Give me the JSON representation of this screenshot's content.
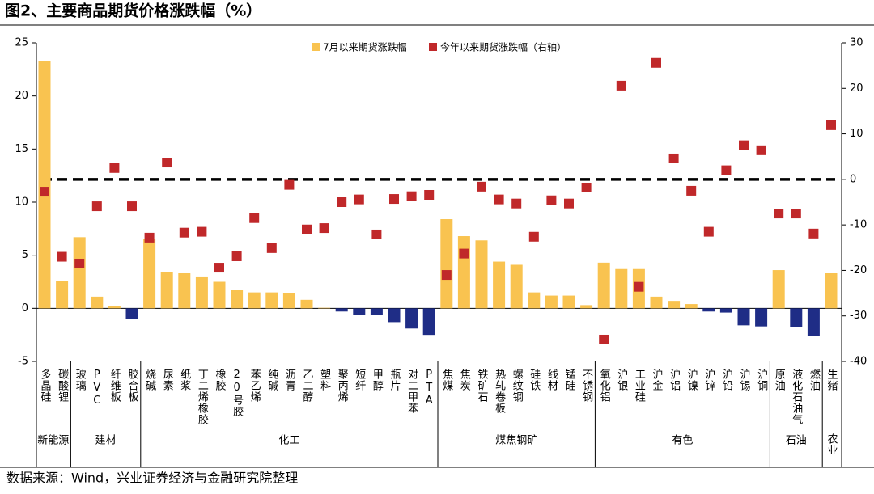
{
  "chart_data": {
    "type": "bar+scatter",
    "title": "图2、主要商品期货价格涨跌幅（%）",
    "source": "数据来源：Wind，兴业证券经济与金融研究院整理",
    "categories": [
      "多晶硅",
      "碳酸锂",
      "玻璃",
      "PVC",
      "纤维板",
      "胶合板",
      "烧碱",
      "尿素",
      "纸浆",
      "丁二烯橡胶",
      "橡胶",
      "20号胶",
      "苯乙烯",
      "纯碱",
      "沥青",
      "乙二醇",
      "塑料",
      "聚丙烯",
      "短纤",
      "甲醇",
      "瓶片",
      "对二甲苯",
      "PTA",
      "焦煤",
      "焦炭",
      "铁矿石",
      "热轧卷板",
      "螺纹钢",
      "硅铁",
      "线材",
      "锰硅",
      "不锈钢",
      "氧化铝",
      "沪银",
      "工业硅",
      "沪金",
      "沪铝",
      "沪镍",
      "沪锌",
      "沪铅",
      "沪锡",
      "沪铜",
      "原油",
      "液化石油气",
      "燃油",
      "生猪"
    ],
    "groups": [
      "新能源",
      "新能源",
      "建材",
      "建材",
      "建材",
      "建材",
      "化工",
      "化工",
      "化工",
      "化工",
      "化工",
      "化工",
      "化工",
      "化工",
      "化工",
      "化工",
      "化工",
      "化工",
      "化工",
      "化工",
      "化工",
      "化工",
      "化工",
      "煤焦钢矿",
      "煤焦钢矿",
      "煤焦钢矿",
      "煤焦钢矿",
      "煤焦钢矿",
      "煤焦钢矿",
      "煤焦钢矿",
      "煤焦钢矿",
      "煤焦钢矿",
      "有色",
      "有色",
      "有色",
      "有色",
      "有色",
      "有色",
      "有色",
      "有色",
      "有色",
      "有色",
      "石油",
      "石油",
      "石油",
      "农业"
    ],
    "series": [
      {
        "name": "7月以来期货涨跌幅",
        "type": "bar",
        "color": "#F9C350",
        "negative_color": "#1F2D86",
        "values": [
          23.3,
          2.6,
          6.7,
          1.1,
          0.2,
          -1.0,
          6.5,
          3.4,
          3.3,
          3.0,
          2.5,
          1.7,
          1.5,
          1.5,
          1.4,
          0.8,
          0.05,
          -0.3,
          -0.6,
          -0.6,
          -1.3,
          -1.9,
          -2.5,
          8.4,
          6.8,
          6.4,
          4.4,
          4.1,
          1.5,
          1.2,
          1.2,
          0.3,
          4.3,
          3.7,
          3.7,
          1.1,
          0.7,
          0.4,
          -0.3,
          -0.4,
          -1.6,
          -1.7,
          3.6,
          -1.8,
          -2.6,
          3.3
        ]
      },
      {
        "name": "今年以来期货涨跌幅（右轴）",
        "type": "scatter",
        "axis": "y2",
        "color": "#C0282A",
        "values": [
          -2.7,
          -17.0,
          -18.5,
          -5.9,
          2.5,
          -5.9,
          -12.8,
          3.7,
          -11.7,
          -11.5,
          -19.4,
          -16.9,
          -8.5,
          -15.1,
          -1.2,
          -11.0,
          -10.7,
          -5.0,
          -4.4,
          -12.1,
          -4.3,
          -3.7,
          -3.4,
          -21.0,
          -16.3,
          -1.6,
          -4.4,
          -5.3,
          -12.6,
          -4.6,
          -5.3,
          -1.8,
          -35.2,
          20.6,
          -23.6,
          25.6,
          4.6,
          -2.5,
          -11.5,
          2.0,
          7.5,
          6.4,
          -7.5,
          -7.5,
          -11.9,
          11.9
        ]
      }
    ],
    "ylim": [
      -5,
      25
    ],
    "yticks": [
      -5,
      0,
      5,
      10,
      15,
      20,
      25
    ],
    "y2lim": [
      -40,
      30
    ],
    "y2ticks": [
      -40,
      -30,
      -20,
      -10,
      0,
      10,
      20,
      30
    ],
    "y2_reference_line": 0,
    "legend": "top"
  }
}
